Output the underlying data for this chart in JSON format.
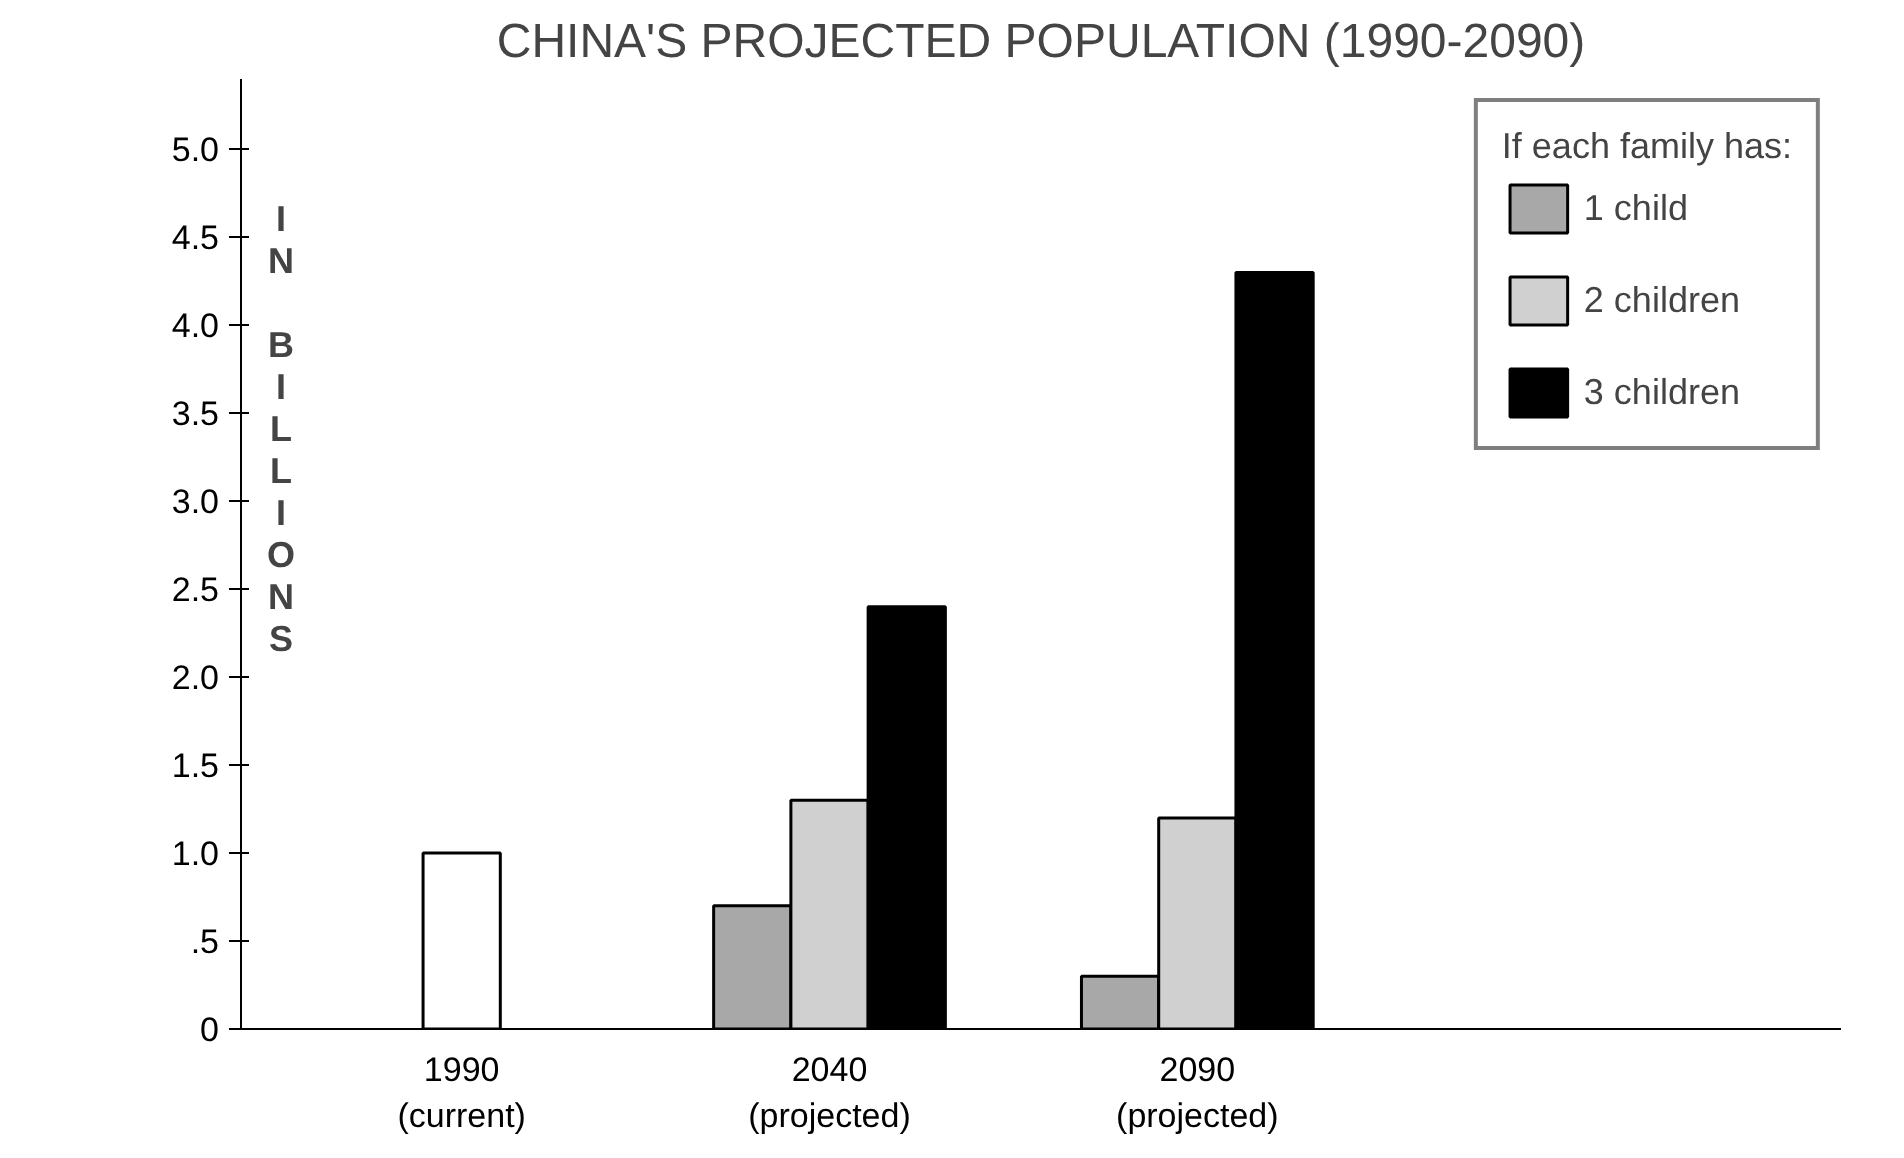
{
  "chart_data": {
    "type": "bar",
    "title": "CHINA'S PROJECTED POPULATION (1990-2090)",
    "ylabel": "IN BILLIONS",
    "legend_title": "If each family has:",
    "categories": [
      "1990\n(current)",
      "2040\n(projected)",
      "2090\n(projected)"
    ],
    "series": [
      {
        "color": "#ffffff",
        "values": [
          1.0,
          null,
          null
        ]
      },
      {
        "name": "1 child",
        "color": "#a8a8a8",
        "values": [
          null,
          0.7,
          0.3
        ]
      },
      {
        "name": "2 children",
        "color": "#d0d0d0",
        "values": [
          null,
          1.3,
          1.2
        ]
      },
      {
        "name": "3 children",
        "color": "#000000",
        "values": [
          null,
          2.4,
          4.3
        ]
      }
    ],
    "ylim": [
      0,
      5.4
    ],
    "yticks": [
      0,
      {
        "value": 0.5,
        "label": ".5"
      },
      {
        "value": 1,
        "label": "1.0"
      },
      {
        "value": 1.5,
        "label": "1.5"
      },
      {
        "value": 2,
        "label": "2.0"
      },
      {
        "value": 2.5,
        "label": "2.5"
      },
      {
        "value": 3,
        "label": "3.0"
      },
      {
        "value": 3.5,
        "label": "3.5"
      },
      {
        "value": 4,
        "label": "4.0"
      },
      {
        "value": 4.5,
        "label": "4.5"
      },
      {
        "value": 5,
        "label": "5.0"
      }
    ],
    "grid": false,
    "legend": "top right"
  }
}
